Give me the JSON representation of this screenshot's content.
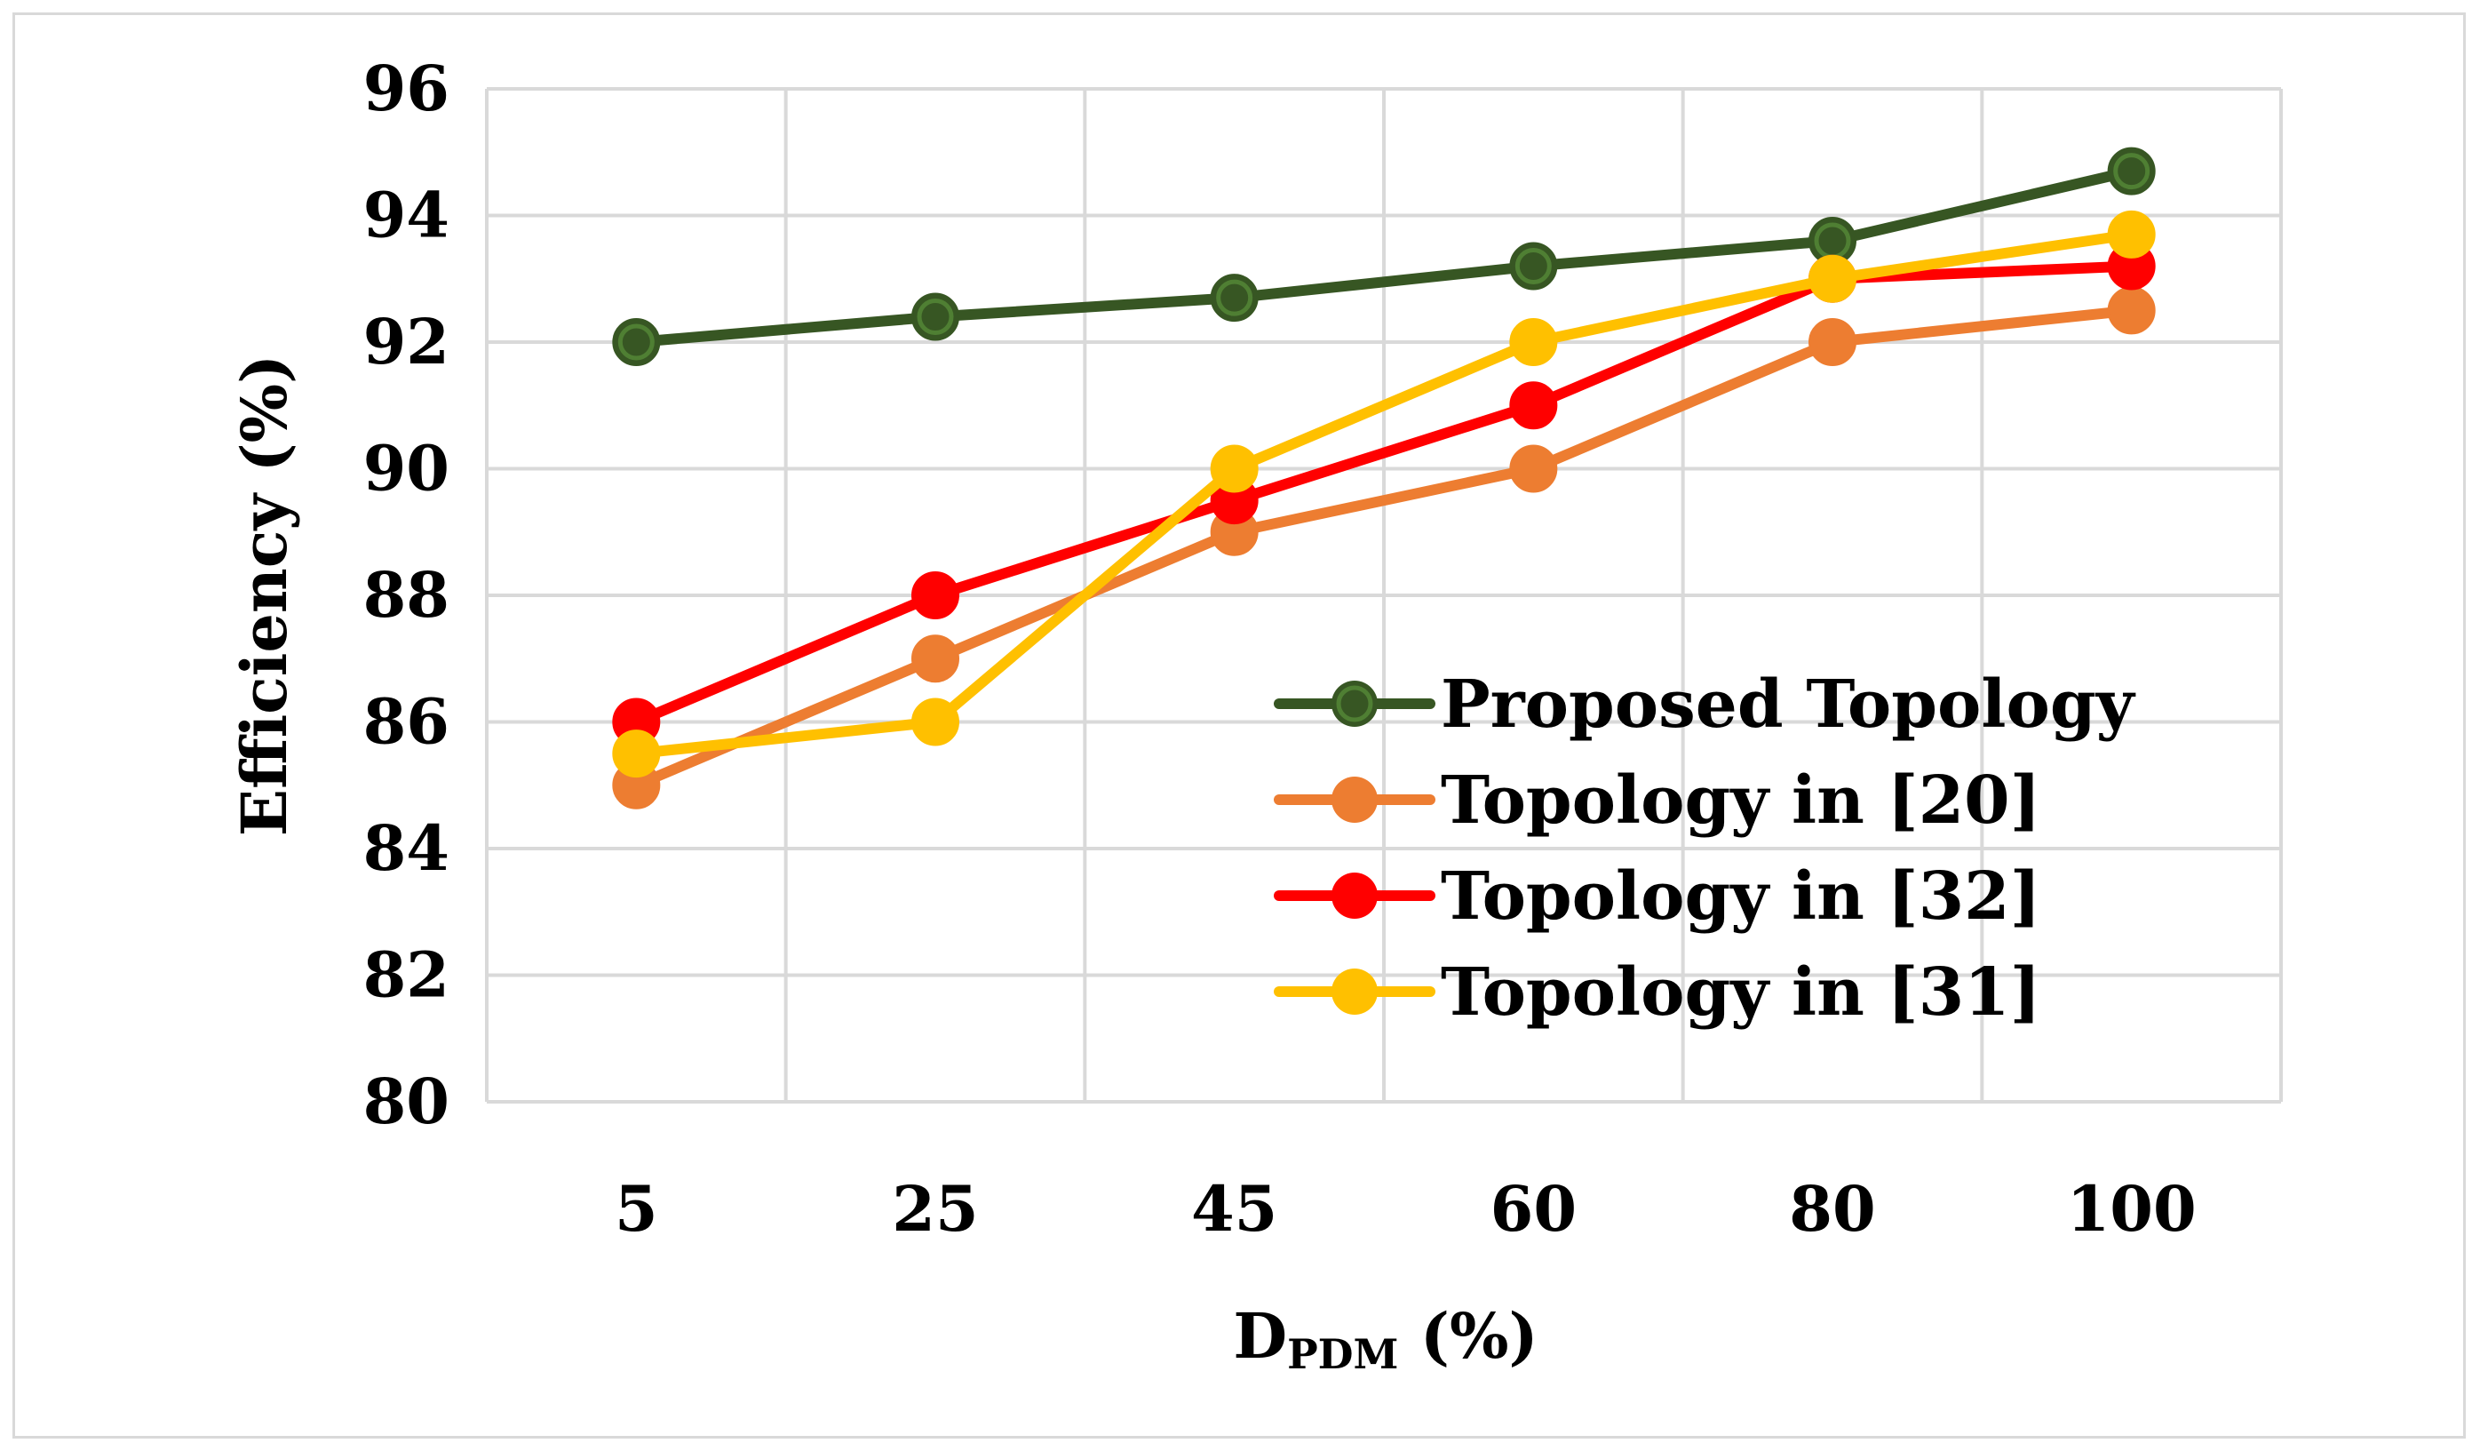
{
  "chart_data": {
    "type": "line",
    "title": "",
    "categories": [
      "5",
      "25",
      "45",
      "60",
      "80",
      "100"
    ],
    "xlabel": {
      "main": "D",
      "sub": "PDM",
      "suffix": " (%)"
    },
    "ylabel": "Efficiency (%)",
    "ylim": [
      80,
      96
    ],
    "yticks": [
      "80",
      "82",
      "84",
      "86",
      "88",
      "90",
      "92",
      "94",
      "96"
    ],
    "grid": true,
    "legend_position": "center-right",
    "series": [
      {
        "name": "Proposed Topology",
        "color": "#375623",
        "values": [
          92.0,
          92.4,
          92.7,
          93.2,
          93.6,
          94.7
        ]
      },
      {
        "name": "Topology in [20]",
        "color": "#ED7D31",
        "values": [
          85.0,
          87.0,
          89.0,
          90.0,
          92.0,
          92.5
        ]
      },
      {
        "name": "Topology in [32]",
        "color": "#FF0000",
        "values": [
          86.0,
          88.0,
          89.5,
          91.0,
          93.0,
          93.2
        ]
      },
      {
        "name": "Topology in [31]",
        "color": "#FFC000",
        "values": [
          85.5,
          86.0,
          90.0,
          92.0,
          93.0,
          93.7
        ]
      }
    ]
  }
}
